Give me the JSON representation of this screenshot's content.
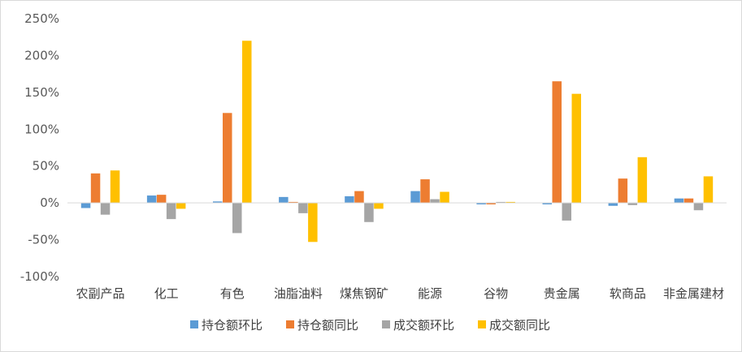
{
  "chart_data": {
    "type": "bar",
    "title": "",
    "xlabel": "",
    "ylabel": "",
    "categories": [
      "农副产品",
      "化工",
      "有色",
      "油脂油料",
      "煤焦钢矿",
      "能源",
      "谷物",
      "贵金属",
      "软商品",
      "非金属建材"
    ],
    "series": [
      {
        "name": "持仓额环比",
        "color": "#5B9BD5",
        "values": [
          -7,
          10,
          2,
          8,
          9,
          16,
          -2,
          -2,
          -4,
          6
        ]
      },
      {
        "name": "持仓额同比",
        "color": "#ED7D31",
        "values": [
          40,
          11,
          122,
          0,
          16,
          32,
          -2,
          165,
          33,
          6
        ]
      },
      {
        "name": "成交额环比",
        "color": "#A5A5A5",
        "values": [
          -16,
          -22,
          -41,
          -14,
          -26,
          5,
          0,
          -24,
          -3,
          -10
        ]
      },
      {
        "name": "成交额同比",
        "color": "#FFC000",
        "values": [
          44,
          -8,
          220,
          -53,
          -8,
          15,
          1,
          148,
          62,
          36
        ]
      }
    ],
    "ylim": [
      -100,
      250
    ],
    "yticks": [
      -100,
      -50,
      0,
      50,
      100,
      150,
      200,
      250
    ],
    "ytick_labels": [
      "-100%",
      "-50%",
      "0%",
      "50%",
      "100%",
      "150%",
      "200%",
      "250%"
    ],
    "grid": false,
    "legend_position": "bottom"
  }
}
